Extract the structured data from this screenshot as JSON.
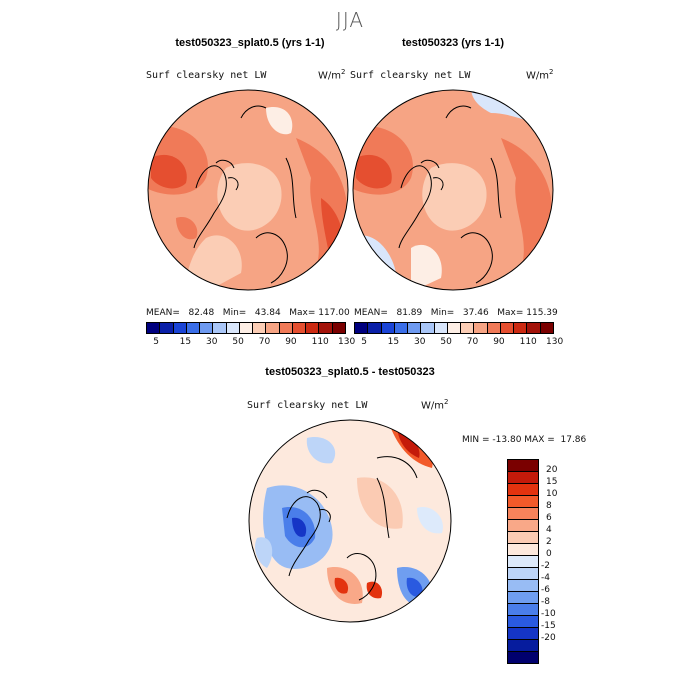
{
  "season": "JJA",
  "panels": [
    {
      "title": "test050323_splat0.5 (yrs 1-1)",
      "variable": "Surf clearsky net LW",
      "units": "W/m",
      "units_sup": "2",
      "stats": "MEAN=   82.48   Min=   43.84   Max= 117.00"
    },
    {
      "title": "test050323 (yrs 1-1)",
      "variable": "Surf clearsky net LW",
      "units": "W/m",
      "units_sup": "2",
      "stats": "MEAN=   81.89   Min=   37.46   Max= 115.39"
    }
  ],
  "shared_colorbar": {
    "colors": [
      "#00007f",
      "#0a1fa8",
      "#1a44d6",
      "#3a6ee8",
      "#6e9af0",
      "#a9c6f7",
      "#d9e6fb",
      "#fdeee5",
      "#fbcdb5",
      "#f6a484",
      "#f07a58",
      "#e54f30",
      "#cc2a12",
      "#a3130a",
      "#7a0000"
    ],
    "tick_labels": [
      "5",
      "15",
      "30",
      "50",
      "70",
      "90",
      "110",
      "130"
    ]
  },
  "diff_panel": {
    "title": "test050323_splat0.5 - test050323",
    "variable": "Surf clearsky net LW",
    "units": "W/m",
    "units_sup": "2",
    "stats": "MIN = -13.80 MAX =  17.86"
  },
  "diff_colorbar": {
    "colors": [
      "#7a0000",
      "#c41a0a",
      "#e3330f",
      "#f25a2a",
      "#f7835b",
      "#f9a888",
      "#fbcbb3",
      "#fde9dd",
      "#ddeafb",
      "#bdd5f8",
      "#98bcf4",
      "#6f9ef0",
      "#4a7eea",
      "#2a5ae0",
      "#1535c6",
      "#061c9e",
      "#00006e"
    ],
    "tick_labels": [
      "20",
      "15",
      "10",
      "8",
      "6",
      "4",
      "2",
      "0",
      "-2",
      "-4",
      "-6",
      "-8",
      "-10",
      "-15",
      "-20"
    ]
  }
}
